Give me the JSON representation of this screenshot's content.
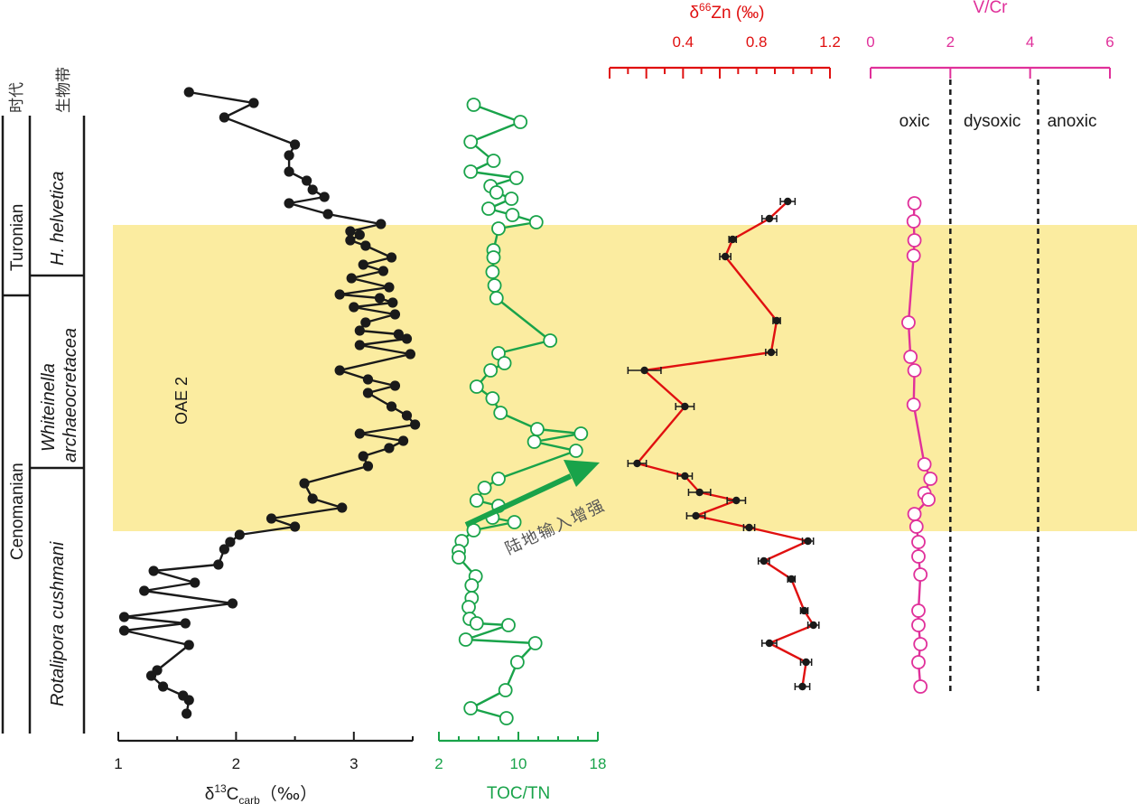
{
  "chart_data": {
    "type": "line",
    "panels": [
      {
        "id": "d13c",
        "xlabel_main": "δ",
        "xlabel_sup": "13",
        "xlabel_c": "C",
        "xlabel_sub": "carb",
        "xlabel_unit": "（‰）",
        "xlim": [
          1,
          3.5
        ],
        "ticks": [
          "1",
          "2",
          "3"
        ],
        "tick_values": [
          1,
          2,
          3
        ],
        "color": "#1a1a1a",
        "marker": "filled-circle",
        "points": [
          [
            1.6,
            102
          ],
          [
            2.15,
            114
          ],
          [
            1.9,
            130
          ],
          [
            2.5,
            160
          ],
          [
            2.45,
            172
          ],
          [
            2.45,
            190
          ],
          [
            2.6,
            200
          ],
          [
            2.65,
            210
          ],
          [
            2.75,
            218
          ],
          [
            2.45,
            225
          ],
          [
            2.78,
            237
          ],
          [
            3.23,
            248
          ],
          [
            2.97,
            256
          ],
          [
            3.05,
            260
          ],
          [
            2.97,
            266
          ],
          [
            3.1,
            272
          ],
          [
            3.32,
            285
          ],
          [
            3.08,
            293
          ],
          [
            3.25,
            300
          ],
          [
            2.98,
            308
          ],
          [
            3.3,
            318
          ],
          [
            2.88,
            326
          ],
          [
            3.22,
            330
          ],
          [
            3.33,
            335
          ],
          [
            3.0,
            340
          ],
          [
            3.35,
            348
          ],
          [
            3.1,
            357
          ],
          [
            3.05,
            366
          ],
          [
            3.38,
            370
          ],
          [
            3.45,
            375
          ],
          [
            3.05,
            382
          ],
          [
            3.48,
            392
          ],
          [
            2.88,
            410
          ],
          [
            3.12,
            420
          ],
          [
            3.35,
            427
          ],
          [
            3.12,
            435
          ],
          [
            3.32,
            450
          ],
          [
            3.45,
            460
          ],
          [
            3.52,
            470
          ],
          [
            3.05,
            480
          ],
          [
            3.42,
            488
          ],
          [
            3.3,
            496
          ],
          [
            3.08,
            505
          ],
          [
            3.12,
            516
          ],
          [
            2.58,
            535
          ],
          [
            2.65,
            552
          ],
          [
            2.9,
            562
          ],
          [
            2.3,
            574
          ],
          [
            2.5,
            583
          ],
          [
            2.03,
            592
          ],
          [
            1.95,
            600
          ],
          [
            1.9,
            608
          ],
          [
            1.85,
            625
          ],
          [
            1.3,
            632
          ],
          [
            1.65,
            645
          ],
          [
            1.22,
            654
          ],
          [
            1.97,
            668
          ],
          [
            1.05,
            683
          ],
          [
            1.57,
            690
          ],
          [
            1.05,
            698
          ],
          [
            1.6,
            714
          ],
          [
            1.33,
            742
          ],
          [
            1.28,
            748
          ],
          [
            1.38,
            760
          ],
          [
            1.55,
            770
          ],
          [
            1.6,
            775
          ],
          [
            1.58,
            790
          ]
        ]
      },
      {
        "id": "toctn",
        "xlabel": "TOC/TN",
        "xlim": [
          2,
          18
        ],
        "ticks": [
          "2",
          "10",
          "18"
        ],
        "tick_values": [
          2,
          10,
          18
        ],
        "color": "#19a34a",
        "marker": "open-circle",
        "points": [
          [
            5.5,
            116
          ],
          [
            10.2,
            135
          ],
          [
            5.2,
            157
          ],
          [
            7.5,
            178
          ],
          [
            5.2,
            190
          ],
          [
            9.8,
            197
          ],
          [
            7.2,
            206
          ],
          [
            7.8,
            213
          ],
          [
            9.3,
            220
          ],
          [
            7.0,
            231
          ],
          [
            9.4,
            238
          ],
          [
            11.8,
            246
          ],
          [
            8.0,
            253
          ],
          [
            7.5,
            277
          ],
          [
            7.5,
            285
          ],
          [
            7.4,
            301
          ],
          [
            7.6,
            316
          ],
          [
            7.8,
            330
          ],
          [
            13.2,
            377
          ],
          [
            8.0,
            391
          ],
          [
            8.6,
            402
          ],
          [
            7.2,
            410
          ],
          [
            5.8,
            428
          ],
          [
            7.4,
            441
          ],
          [
            8.2,
            457
          ],
          [
            11.9,
            475
          ],
          [
            16.3,
            480
          ],
          [
            11.6,
            489
          ],
          [
            15.8,
            499
          ],
          [
            8.0,
            530
          ],
          [
            6.6,
            540
          ],
          [
            5.8,
            554
          ],
          [
            8.0,
            560
          ],
          [
            7.4,
            573
          ],
          [
            9.6,
            578
          ],
          [
            5.5,
            587
          ],
          [
            4.3,
            599
          ],
          [
            4.0,
            610
          ],
          [
            4.0,
            617
          ],
          [
            5.7,
            638
          ],
          [
            5.3,
            648
          ],
          [
            5.3,
            662
          ],
          [
            5.0,
            672
          ],
          [
            5.1,
            685
          ],
          [
            5.8,
            690
          ],
          [
            9.0,
            692
          ],
          [
            4.7,
            708
          ],
          [
            11.7,
            712
          ],
          [
            9.9,
            733
          ],
          [
            8.7,
            764
          ],
          [
            5.2,
            784
          ],
          [
            8.8,
            795
          ]
        ]
      },
      {
        "id": "d66zn",
        "xlabel_main": "δ",
        "xlabel_sup": "66",
        "xlabel_rest": "Zn (‰)",
        "xlim": [
          0,
          1.2
        ],
        "ticks": [
          "0.4",
          "0.8",
          "1.2"
        ],
        "tick_values": [
          0.4,
          0.8,
          1.2
        ],
        "color": "#e01010",
        "marker": "filled-circle-errorbar",
        "points": [
          [
            0.97,
            223
          ],
          [
            0.87,
            242
          ],
          [
            0.67,
            265
          ],
          [
            0.63,
            284
          ],
          [
            0.91,
            355
          ],
          [
            0.88,
            390
          ],
          [
            0.19,
            410
          ],
          [
            0.41,
            450
          ],
          [
            0.15,
            513
          ],
          [
            0.41,
            527
          ],
          [
            0.49,
            545
          ],
          [
            0.69,
            554
          ],
          [
            0.47,
            571
          ],
          [
            0.76,
            584
          ],
          [
            1.08,
            599
          ],
          [
            0.84,
            621
          ],
          [
            0.99,
            641
          ],
          [
            1.06,
            676
          ],
          [
            1.11,
            692
          ],
          [
            0.87,
            712
          ],
          [
            1.07,
            733
          ],
          [
            1.05,
            760
          ]
        ],
        "xerr": [
          0.04,
          0.04,
          0.02,
          0.03,
          0.02,
          0.03,
          0.09,
          0.05,
          0.05,
          0.04,
          0.06,
          0.05,
          0.05,
          0.03,
          0.03,
          0.03,
          0.02,
          0.02,
          0.03,
          0.04,
          0.03,
          0.04
        ]
      },
      {
        "id": "vcr",
        "xlabel": "V/Cr",
        "xlim": [
          0,
          6
        ],
        "ticks": [
          "0",
          "2",
          "4",
          "6"
        ],
        "tick_values": [
          0,
          2,
          4,
          6
        ],
        "color": "#e0309a",
        "marker": "open-circle",
        "points": [
          [
            1.1,
            225
          ],
          [
            1.08,
            245
          ],
          [
            1.1,
            266
          ],
          [
            1.08,
            283
          ],
          [
            0.95,
            357
          ],
          [
            1.0,
            395
          ],
          [
            1.1,
            410
          ],
          [
            1.08,
            448
          ],
          [
            1.35,
            514
          ],
          [
            1.5,
            530
          ],
          [
            1.35,
            546
          ],
          [
            1.45,
            553
          ],
          [
            1.1,
            569
          ],
          [
            1.15,
            583
          ],
          [
            1.2,
            600
          ],
          [
            1.2,
            616
          ],
          [
            1.25,
            636
          ],
          [
            1.2,
            676
          ],
          [
            1.2,
            692
          ],
          [
            1.25,
            713
          ],
          [
            1.2,
            733
          ],
          [
            1.25,
            760
          ]
        ],
        "thresholds": [
          2,
          4.2
        ],
        "redox_labels": [
          "oxic",
          "dysoxic",
          "anoxic"
        ]
      }
    ],
    "strat": {
      "header_era": "时代",
      "header_zone": "生物带",
      "stages": [
        "Turonian",
        "Cenomanian"
      ],
      "zones": [
        "H. helvetica",
        "Whiteinella archaeocretacea",
        "Rotalipora cushmani"
      ],
      "zone_lines": [
        [
          "H. helvetica"
        ],
        [
          "Whiteinella",
          "archaeocretacea"
        ],
        [
          "Rotalipora cushmani"
        ]
      ]
    },
    "event_label": "OAE 2",
    "annotation": "陆地输入增强",
    "event_color": "#fbeca0"
  }
}
